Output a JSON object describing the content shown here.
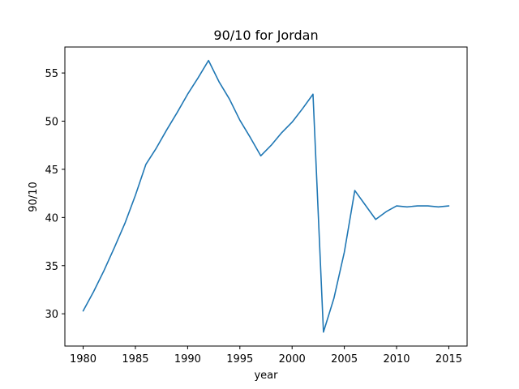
{
  "chart_data": {
    "type": "line",
    "title": "90/10 for Jordan",
    "xlabel": "year",
    "ylabel": "90/10",
    "xlim": [
      1978.25,
      2016.75
    ],
    "ylim": [
      26.65,
      57.7
    ],
    "xticks": [
      1980,
      1985,
      1990,
      1995,
      2000,
      2005,
      2010,
      2015
    ],
    "yticks": [
      30,
      35,
      40,
      45,
      50,
      55
    ],
    "grid": false,
    "series": [
      {
        "color": "#1f77b4",
        "x": [
          1980,
          1981,
          1982,
          1983,
          1984,
          1985,
          1986,
          1987,
          1988,
          1989,
          1990,
          1991,
          1992,
          1993,
          1994,
          1995,
          1996,
          1997,
          1998,
          1999,
          2000,
          2001,
          2002,
          2003,
          2004,
          2005,
          2006,
          2007,
          2008,
          2009,
          2010,
          2011,
          2012,
          2013,
          2014,
          2015
        ],
        "y": [
          30.3,
          32.3,
          34.5,
          36.9,
          39.4,
          42.3,
          45.5,
          47.2,
          49.1,
          50.9,
          52.8,
          54.5,
          56.3,
          54.1,
          52.3,
          50.1,
          48.3,
          46.4,
          47.5,
          48.8,
          49.9,
          51.3,
          52.8,
          28.1,
          31.6,
          36.4,
          42.8,
          41.3,
          39.8,
          40.6,
          41.2,
          41.1,
          41.2,
          41.2,
          41.1,
          41.2
        ]
      }
    ]
  }
}
